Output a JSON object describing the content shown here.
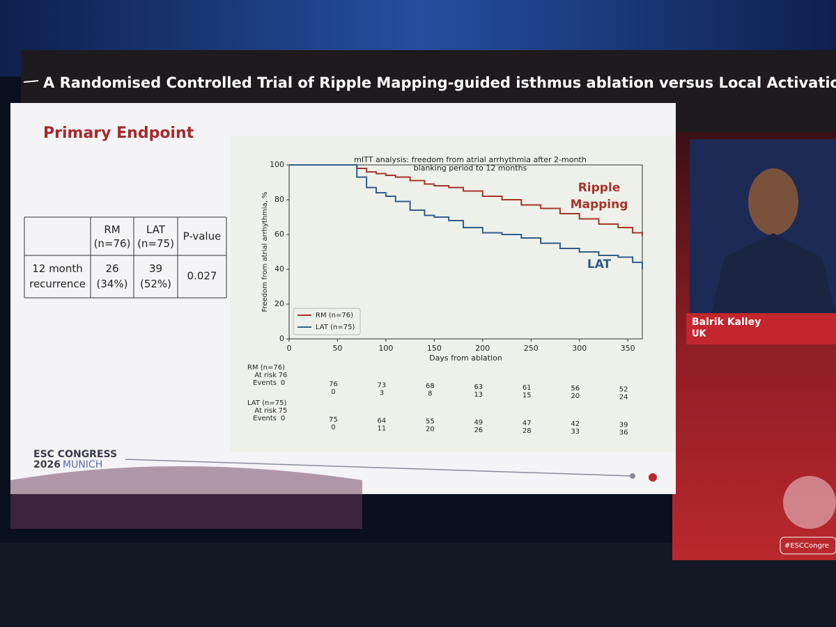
{
  "header": {
    "title": "A Randomised Controlled Trial of Ripple Mapping-guided isthmus ablation versus Local Activation T"
  },
  "slide": {
    "heading": "Primary Endpoint",
    "table": {
      "columns": [
        "RM (n=76)",
        "LAT (n=75)",
        "P-value"
      ],
      "rows": [
        {
          "label": "12 month recurrence",
          "cells": [
            "26 (34%)",
            "39 (52%)",
            "0.027"
          ]
        }
      ]
    },
    "footer": {
      "line1": "ESC CONGRESS",
      "year": "2026",
      "city": "MUNICH"
    }
  },
  "speaker": {
    "name": "Balrik Kalley",
    "country": "UK",
    "hashtag": "#ESCCongre"
  },
  "chart_data": {
    "type": "step",
    "title": [
      "mITT analysis: freedom from atrial arrhythmia after 2-month",
      "blanking period to 12 months"
    ],
    "x_label": "Days from ablation",
    "y_label": "Freedom from atrial arrhythmia, %",
    "x": [
      0,
      60,
      70,
      80,
      90,
      100,
      110,
      125,
      140,
      150,
      165,
      180,
      200,
      220,
      240,
      260,
      280,
      300,
      320,
      340,
      355,
      365
    ],
    "series": [
      {
        "name": "RM (n=76)",
        "color": "#a5342b",
        "values": [
          100,
          100,
          98,
          96,
          95,
          94,
          93,
          91,
          89,
          88,
          87,
          85,
          82,
          80,
          77,
          75,
          72,
          69,
          66,
          64,
          61,
          59
        ]
      },
      {
        "name": "LAT (n=75)",
        "color": "#2f5d8a",
        "values": [
          100,
          100,
          93,
          87,
          84,
          82,
          79,
          74,
          71,
          70,
          68,
          64,
          61,
          60,
          58,
          55,
          52,
          50,
          48,
          47,
          44,
          40
        ]
      }
    ],
    "xlim": [
      0,
      365
    ],
    "ylim": [
      0,
      100
    ],
    "xticks": [
      0,
      50,
      100,
      150,
      200,
      250,
      300,
      350
    ],
    "yticks": [
      0,
      20,
      40,
      60,
      80,
      100
    ],
    "legend": "lower left",
    "annotations": [
      {
        "lines": [
          "Ripple",
          "Mapping"
        ],
        "color": "#a5342b"
      },
      {
        "lines": [
          "LAT"
        ],
        "color": "#2f5d8a"
      }
    ],
    "risk_table": {
      "row_labels": [
        "At risk",
        "Events"
      ],
      "groups": [
        {
          "name": "RM (n=76)",
          "at_risk": [
            76,
            76,
            73,
            68,
            63,
            61,
            56,
            52
          ],
          "events": [
            0,
            0,
            3,
            8,
            13,
            15,
            20,
            24
          ]
        },
        {
          "name": "LAT (n=75)",
          "at_risk": [
            75,
            75,
            64,
            55,
            49,
            47,
            42,
            39
          ],
          "events": [
            0,
            0,
            11,
            20,
            26,
            28,
            33,
            36
          ]
        }
      ]
    }
  }
}
